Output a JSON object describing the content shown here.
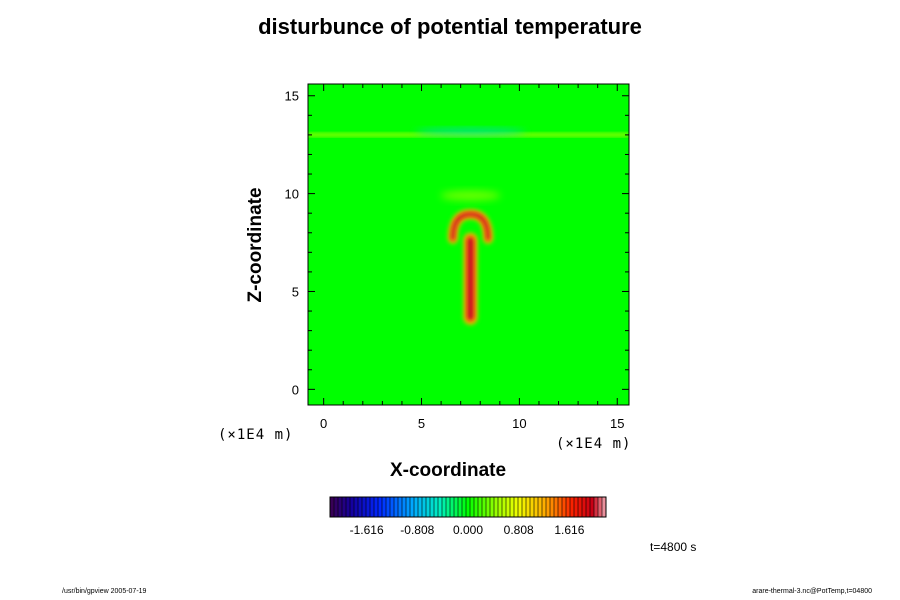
{
  "chart_data": {
    "type": "heatmap",
    "title": "disturbunce of potential temperature",
    "xlabel": "X-coordinate",
    "ylabel": "Z-coordinate",
    "x_unit": "(×1E4 m)",
    "y_unit": "(×1E4 m)",
    "xlim": [
      -0.8,
      15.6
    ],
    "ylim": [
      -0.8,
      15.6
    ],
    "x_ticks": [
      0,
      5,
      10,
      15
    ],
    "y_ticks": [
      0,
      5,
      10,
      15
    ],
    "x_tick_labels": [
      "0",
      "5",
      "10",
      "15"
    ],
    "y_tick_labels": [
      "0",
      "5",
      "10",
      "15"
    ],
    "colorbar": {
      "range": [
        -2.2,
        2.2
      ],
      "tick_values": [
        -1.616,
        -0.808,
        0.0,
        0.808,
        1.616
      ],
      "tick_labels": [
        "-1.616",
        "-0.808",
        "0.000",
        "0.808",
        "1.616"
      ]
    },
    "time_label": "t=4800 s",
    "features": {
      "background_value": 0.0,
      "plume": {
        "x": 7.5,
        "z_bottom": 3.3,
        "z_top": 8.7,
        "peak_value": 2.0
      },
      "cap": {
        "x": 7.5,
        "z": 8.0,
        "half_width": 0.9
      },
      "weak_band": {
        "x": 7.5,
        "z": 9.9,
        "value": 0.45
      },
      "tropopause_band": {
        "z": 13.0,
        "value": 0.55,
        "min_value": -0.6
      }
    }
  },
  "footer": {
    "left": "/usr/bin/gpview 2005-07-19",
    "right": "arare-thermal-3.nc@PotTemp,t=04800"
  }
}
